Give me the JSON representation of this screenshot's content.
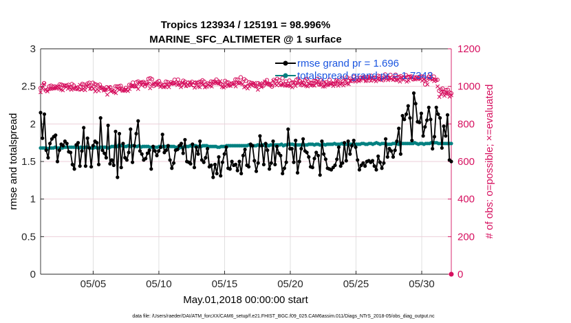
{
  "chart_data": {
    "type": "line",
    "title": [
      "Tropics 123934 / 125191 = 98.996%",
      "MARINE_SFC_ALTIMETER @ 1 surface"
    ],
    "xlabel": "May.01,2018 00:00:00 start",
    "ylabel_left": "rmse and totalspread",
    "ylabel_right": "# of obs: o=possible; ×=evaluated",
    "x_tick_labels": [
      "05/05",
      "05/10",
      "05/15",
      "05/20",
      "05/25",
      "05/30"
    ],
    "x_ticks_day": [
      5,
      10,
      15,
      20,
      25,
      30
    ],
    "xlim_day": [
      1,
      32.25
    ],
    "ylim_left": [
      0,
      3
    ],
    "yticks_left": [
      "0",
      "0.5",
      "1",
      "1.5",
      "2",
      "2.5",
      "3"
    ],
    "ylim_right": [
      0,
      1200
    ],
    "yticks_right": [
      "0",
      "200",
      "400",
      "600",
      "800",
      "1000",
      "1200"
    ],
    "grid": true,
    "legend_position": "top-right",
    "colors": {
      "rmse": "#000000",
      "spread": "#008080",
      "obs": "#d6105f",
      "legend_text": "#1a55e0"
    },
    "series": [
      {
        "name": "rmse grand pr = 1.696",
        "axis": "left",
        "color": "#000000",
        "values": [
          2.15,
          1.81,
          2.13,
          1.65,
          1.55,
          1.74,
          1.8,
          1.83,
          1.85,
          1.5,
          1.65,
          1.73,
          1.71,
          1.77,
          1.74,
          1.63,
          1.62,
          1.46,
          1.4,
          1.72,
          1.75,
          1.44,
          1.64,
          1.95,
          1.44,
          1.81,
          1.68,
          1.43,
          1.71,
          1.77,
          1.75,
          1.46,
          2.08,
          1.65,
          1.61,
          1.55,
          1.98,
          1.47,
          1.52,
          1.45,
          1.9,
          1.29,
          1.87,
          1.42,
          1.74,
          1.55,
          1.52,
          1.62,
          1.93,
          1.49,
          1.71,
          1.87,
          2.04,
          1.64,
          1.6,
          1.52,
          1.54,
          1.61,
          1.65,
          1.4,
          1.7,
          1.64,
          1.58,
          1.64,
          1.69,
          1.86,
          1.62,
          1.65,
          1.71,
          1.52,
          1.41,
          1.48,
          1.65,
          1.66,
          1.71,
          1.74,
          1.61,
          1.79,
          1.5,
          1.49,
          1.47,
          1.73,
          1.42,
          1.69,
          1.6,
          1.77,
          1.52,
          1.49,
          1.55,
          1.67,
          1.43,
          1.45,
          1.29,
          1.46,
          1.34,
          1.56,
          1.31,
          1.49,
          1.6,
          1.69,
          1.41,
          1.4,
          1.5,
          1.45,
          1.46,
          1.38,
          1.5,
          1.34,
          1.58,
          1.66,
          1.45,
          1.43,
          1.73,
          1.71,
          1.51,
          1.37,
          1.48,
          1.84,
          1.71,
          1.46,
          1.74,
          1.65,
          1.4,
          1.48,
          1.77,
          1.46,
          1.7,
          1.61,
          1.58,
          1.34,
          1.41,
          1.49,
          1.93,
          1.67,
          1.67,
          1.49,
          1.78,
          1.35,
          1.5,
          1.67,
          1.8,
          1.64,
          1.62,
          1.56,
          1.43,
          1.42,
          1.54,
          1.62,
          1.58,
          1.32,
          1.77,
          1.6,
          1.53,
          1.41,
          1.4,
          1.39,
          1.42,
          1.45,
          1.53,
          1.69,
          1.44,
          1.48,
          1.75,
          1.51,
          1.77,
          1.6,
          1.71,
          1.78,
          1.69,
          1.52,
          1.39,
          1.45,
          1.48,
          1.44,
          1.5,
          1.51,
          1.49,
          1.51,
          1.44,
          1.39,
          1.57,
          1.49,
          1.41,
          1.48,
          1.8,
          1.56,
          1.67,
          1.64,
          1.56,
          1.65,
          1.77,
          1.94,
          1.6,
          2.11,
          2.06,
          2.13,
          2.24,
          2.08,
          1.78,
          2.41,
          2.27,
          2.03,
          2.02,
          2.14,
          1.84,
          1.96,
          2.05,
          2.22,
          2.06,
          1.67,
          1.83,
          2.22,
          2.13,
          2.08,
          1.68,
          1.97,
          1.84,
          2.12,
          1.52,
          1.5
        ]
      },
      {
        "name": "totalspread grand pr = 1.7343",
        "axis": "left",
        "color": "#008080",
        "values": [
          1.68,
          1.68,
          1.68,
          1.68,
          1.67,
          1.68,
          1.68,
          1.68,
          1.69,
          1.68,
          1.68,
          1.68,
          1.68,
          1.69,
          1.69,
          1.69,
          1.69,
          1.69,
          1.69,
          1.69,
          1.69,
          1.68,
          1.69,
          1.68,
          1.69,
          1.69,
          1.69,
          1.68,
          1.68,
          1.68,
          1.69,
          1.68,
          1.68,
          1.69,
          1.69,
          1.69,
          1.69,
          1.68,
          1.69,
          1.7,
          1.7,
          1.7,
          1.7,
          1.72,
          1.71,
          1.71,
          1.7,
          1.7,
          1.71,
          1.7,
          1.71,
          1.71,
          1.7,
          1.7,
          1.71,
          1.69,
          1.7,
          1.7,
          1.7,
          1.7,
          1.69,
          1.69,
          1.69,
          1.69,
          1.69,
          1.7,
          1.69,
          1.7,
          1.7,
          1.7,
          1.7,
          1.7,
          1.7,
          1.7,
          1.69,
          1.69,
          1.68,
          1.69,
          1.69,
          1.7,
          1.7,
          1.7,
          1.71,
          1.7,
          1.71,
          1.71,
          1.7,
          1.7,
          1.7,
          1.71,
          1.71,
          1.71,
          1.7,
          1.7,
          1.7,
          1.7,
          1.7,
          1.69,
          1.69,
          1.7,
          1.7,
          1.7,
          1.71,
          1.71,
          1.71,
          1.71,
          1.71,
          1.71,
          1.71,
          1.71,
          1.71,
          1.71,
          1.71,
          1.71,
          1.72,
          1.71,
          1.71,
          1.71,
          1.71,
          1.72,
          1.71,
          1.72,
          1.72,
          1.71,
          1.72,
          1.71,
          1.72,
          1.72,
          1.72,
          1.72,
          1.72,
          1.72,
          1.73,
          1.71,
          1.72,
          1.72,
          1.73,
          1.73,
          1.73,
          1.72,
          1.72,
          1.72,
          1.72,
          1.72,
          1.72,
          1.72,
          1.72,
          1.73,
          1.73,
          1.73,
          1.72,
          1.73,
          1.73,
          1.72,
          1.72,
          1.73,
          1.72,
          1.73,
          1.73,
          1.73,
          1.73,
          1.74,
          1.73,
          1.73,
          1.73,
          1.74,
          1.73,
          1.73,
          1.73,
          1.73,
          1.73,
          1.73,
          1.73,
          1.73,
          1.73,
          1.73,
          1.74,
          1.74,
          1.73,
          1.73,
          1.74,
          1.74,
          1.73,
          1.74,
          1.75,
          1.74,
          1.73,
          1.74,
          1.74,
          1.74,
          1.73,
          1.73,
          1.73,
          1.74,
          1.74,
          1.75,
          1.73,
          1.75,
          1.74,
          1.74,
          1.74,
          1.74,
          1.74,
          1.74,
          1.74,
          1.75,
          1.74,
          1.73,
          1.74,
          1.74,
          1.73,
          1.74,
          1.74,
          1.74,
          1.75,
          1.75,
          1.75,
          1.75,
          1.74,
          1.74,
          1.74,
          1.74,
          1.74,
          1.74,
          1.74,
          1.74
        ]
      },
      {
        "name": "possible",
        "axis": "right",
        "color": "#d6105f",
        "marker": "o",
        "values": [
          991,
          1003,
          1017,
          978,
          982,
          1000,
          1004,
          998,
          999,
          994,
          998,
          1010,
          1009,
          1005,
          1004,
          1004,
          1008,
          996,
          1012,
          1005,
          987,
          993,
          985,
          998,
          1013,
          1009,
          999,
          1015,
          1019,
          988,
          1019,
          1012,
          1009,
          1003,
          1009,
          994,
          986,
          983,
          995,
          988,
          995,
          981,
          973,
          1000,
          999,
          1000,
          1003,
          983,
          980,
          992,
          983,
          1008,
          1005,
          1020,
          1000,
          1021,
          1026,
          1015,
          1021,
          1023,
          1001,
          1020,
          1040,
          1043,
          1038,
          1002,
          1010,
          1022,
          1028,
          1014,
          1005,
          1006,
          1025,
          1022,
          1012,
          1021,
          1017,
          1035,
          1021,
          1036,
          1016,
          1006,
          1030,
          1024,
          1004,
          1020,
          1012,
          1024,
          1006,
          1020,
          1018,
          1023,
          1025,
          1032,
          1025,
          1009,
          1016,
          1013,
          1026,
          1023,
          1026,
          1036,
          1021,
          1014,
          1010,
          1007,
          1029,
          1022,
          1020,
          1010,
          1015,
          1018,
          1037,
          1036,
          1018,
          1048,
          1024,
          1038,
          1030,
          1002,
          1022,
          1018,
          1008,
          1003,
          1001,
          1017,
          1011,
          1004,
          1003,
          1021,
          1033,
          1012,
          1007,
          999,
          1034,
          1029,
          1040,
          1032,
          1017,
          1043,
          1013,
          1026,
          1014,
          1031,
          1017,
          1021,
          1020,
          1035,
          1041,
          1028,
          1007,
          1018,
          1031,
          1040,
          1025,
          1017,
          1017,
          1029,
          1029,
          1040,
          1011,
          1032,
          1024,
          1017,
          1021,
          1008,
          1035,
          1019,
          1015,
          1013,
          1031,
          1025,
          1016,
          1042,
          1027,
          1021,
          1048,
          1030,
          1041,
          1029,
          1051,
          1035,
          1044,
          1033,
          1047,
          1043,
          1051,
          1032,
          1050,
          1032,
          1056,
          1044,
          1047,
          1044,
          1056,
          1053,
          1044,
          1033,
          1063,
          1045,
          1044,
          1061,
          1046,
          1038,
          1062,
          1046,
          1050,
          1054,
          1045,
          1048,
          1059,
          1050,
          1051,
          1053,
          1038,
          1047,
          1048,
          1043,
          1048,
          1053,
          1051,
          1010,
          1035,
          1051,
          1065,
          1040,
          1052,
          1032,
          1035,
          977,
          983,
          988,
          969,
          980,
          982,
          967,
          963
        ]
      },
      {
        "name": "evaluated",
        "axis": "right",
        "color": "#d6105f",
        "marker": "x",
        "values": [
          969,
          989,
          1012,
          983,
          973,
          986,
          987,
          988,
          989,
          991,
          999,
          987,
          983,
          979,
          1001,
          997,
          987,
          997,
          982,
          989,
          989,
          996,
          985,
          1008,
          982,
          987,
          980,
          1002,
          1007,
          987,
          1000,
          988,
          973,
          984,
          977,
          994,
          991,
          978,
          980,
          956,
          994,
          974,
          976,
          969,
          964,
          988,
          982,
          987,
          976,
          977,
          984,
          975,
          986,
          1002,
          1000,
          1000,
          1000,
          986,
          1020,
          1006,
          1021,
          1008,
          1013,
          1014,
          990,
          1011,
          1015,
          1017,
          1006,
          1011,
          997,
          1008,
          996,
          997,
          1006,
          996,
          1014,
          1014,
          1013,
          1016,
          1007,
          1013,
          996,
          1019,
          1014,
          1001,
          1009,
          1020,
          1005,
          1018,
          993,
          1019,
          999,
          996,
          1015,
          1010,
          995,
          998,
          1009,
          1003,
          999,
          1016,
          1021,
          1017,
          1015,
          1028,
          997,
          994,
          1000,
          1008,
          1004,
          1002,
          1012,
          1016,
          1000,
          1021,
          1017,
          1017,
          1012,
          995,
          999,
          989,
          1000,
          1011,
          1014,
          1019,
          1000,
          982,
          1013,
          996,
          1017,
          1026,
          1011,
          1014,
          1016,
          1005,
          1029,
          1012,
          1006,
          1015,
          1006,
          1007,
          1012,
          1003,
          1004,
          1005,
          1001,
          995,
          1019,
          1002,
          1017,
          1017,
          1009,
          1022,
          1007,
          1003,
          1000,
          1014,
          1005,
          1006,
          1004,
          1018,
          1024,
          1009,
          1008,
          999,
          999,
          1013,
          1008,
          1013,
          1015,
          1002,
          1011,
          1029,
          1003,
          1012,
          1016,
          1005,
          1034,
          1015,
          1012,
          1031,
          1033,
          1041,
          1025,
          1032,
          1028,
          1032,
          1045,
          1042,
          1028,
          1042,
          1048,
          1030,
          1044,
          1033,
          1027,
          1038,
          1034,
          1036,
          1039,
          1044,
          1048,
          1033,
          1047,
          1040,
          1035,
          1047,
          1032,
          1035,
          1025,
          1045,
          1035,
          1048,
          1025,
          1031,
          1047,
          1048,
          1038,
          1037,
          1043,
          1043,
          1038,
          1030,
          1036,
          1029,
          1011,
          1045,
          1041,
          1036,
          1028,
          1035,
          1000,
          944,
          958,
          971,
          950,
          961,
          961,
          945,
          953
        ]
      }
    ]
  },
  "footer": "data file: /Users/raeder/DAI/ATM_forcXX/CAM6_setup/f.e21.FHIST_BGC.f09_025.CAM6assim.011/Diags_NTrS_2018-05/obs_diag_output.nc"
}
